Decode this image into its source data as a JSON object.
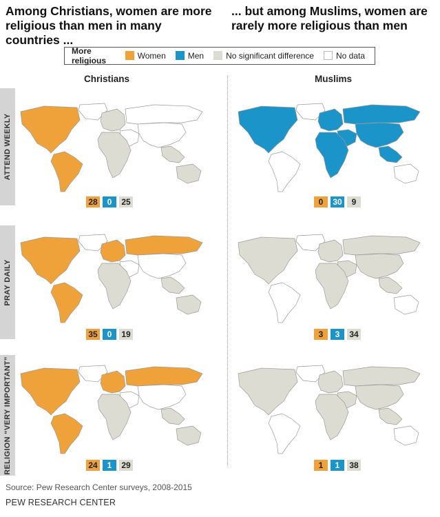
{
  "headline_left": "Among Christians, women are more religious than men in many countries ...",
  "headline_right": "... but among Muslims, women are rarely more religious than men",
  "legend": {
    "title": "More religious",
    "items": [
      {
        "label": "Women",
        "color": "#f0a23a"
      },
      {
        "label": "Men",
        "color": "#1b94c9"
      },
      {
        "label": "No significant difference",
        "color": "#dcdcd2"
      },
      {
        "label": "No data",
        "color": "#ffffff"
      }
    ]
  },
  "columns": {
    "christians": "Christians",
    "muslims": "Muslims"
  },
  "rows": [
    {
      "label": "ATTEND WEEKLY",
      "christians": {
        "women": "28",
        "men": "0",
        "no_diff": "25"
      },
      "muslims": {
        "women": "0",
        "men": "30",
        "no_diff": "9"
      }
    },
    {
      "label": "PRAY DAILY",
      "christians": {
        "women": "35",
        "men": "0",
        "no_diff": "19"
      },
      "muslims": {
        "women": "3",
        "men": "3",
        "no_diff": "34"
      }
    },
    {
      "label": "RELIGION “VERY IMPORTANT”",
      "christians": {
        "women": "24",
        "men": "1",
        "no_diff": "29"
      },
      "muslims": {
        "women": "1",
        "men": "1",
        "no_diff": "38"
      }
    }
  ],
  "map_fills": {
    "christians_attend": {
      "n_america": "#f0a23a",
      "s_america": "#f0a23a",
      "greenland": "#ffffff",
      "europe": "#dcdcd2",
      "russia": "#ffffff",
      "mideast": "#ffffff",
      "africa": "#dcdcd2",
      "asia": "#ffffff",
      "se_asia": "#dcdcd2",
      "australia": "#dcdcd2"
    },
    "muslims_attend": {
      "n_america": "#1b94c9",
      "s_america": "#ffffff",
      "greenland": "#ffffff",
      "europe": "#1b94c9",
      "russia": "#1b94c9",
      "mideast": "#1b94c9",
      "africa": "#1b94c9",
      "asia": "#1b94c9",
      "se_asia": "#1b94c9",
      "australia": "#ffffff"
    },
    "christians_pray": {
      "n_america": "#f0a23a",
      "s_america": "#f0a23a",
      "greenland": "#ffffff",
      "europe": "#f0a23a",
      "russia": "#f0a23a",
      "mideast": "#ffffff",
      "africa": "#dcdcd2",
      "asia": "#ffffff",
      "se_asia": "#dcdcd2",
      "australia": "#dcdcd2"
    },
    "muslims_pray": {
      "n_america": "#dcdcd2",
      "s_america": "#ffffff",
      "greenland": "#ffffff",
      "europe": "#dcdcd2",
      "russia": "#dcdcd2",
      "mideast": "#dcdcd2",
      "africa": "#dcdcd2",
      "asia": "#dcdcd2",
      "se_asia": "#dcdcd2",
      "australia": "#ffffff"
    },
    "christians_important": {
      "n_america": "#f0a23a",
      "s_america": "#f0a23a",
      "greenland": "#ffffff",
      "europe": "#f0a23a",
      "russia": "#f0a23a",
      "mideast": "#ffffff",
      "africa": "#dcdcd2",
      "asia": "#ffffff",
      "se_asia": "#dcdcd2",
      "australia": "#dcdcd2"
    },
    "muslims_important": {
      "n_america": "#dcdcd2",
      "s_america": "#ffffff",
      "greenland": "#ffffff",
      "europe": "#dcdcd2",
      "russia": "#dcdcd2",
      "mideast": "#dcdcd2",
      "africa": "#dcdcd2",
      "asia": "#dcdcd2",
      "se_asia": "#dcdcd2",
      "australia": "#ffffff"
    }
  },
  "source": "Source: Pew Research Center surveys, 2008-2015",
  "org": "PEW RESEARCH CENTER"
}
